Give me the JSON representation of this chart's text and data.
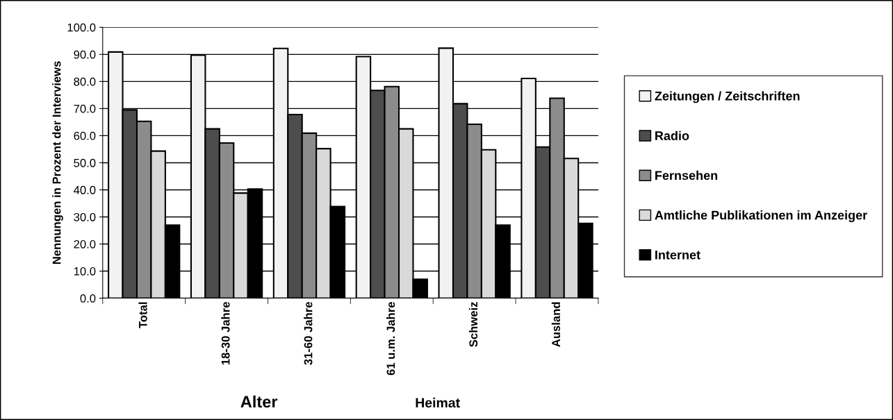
{
  "chart_data": {
    "type": "bar",
    "ylabel": "Nennungen in Prozent der Interviews",
    "categories": [
      "Total",
      "18-30 Jahre",
      "31-60 Jahre",
      "61 u.m. Jahre",
      "Schweiz",
      "Ausland"
    ],
    "series": [
      {
        "name": "Zeitungen / Zeitschriften",
        "color": "#f2f2f2",
        "values": [
          90.9,
          89.7,
          92.2,
          89.2,
          92.3,
          81.1
        ]
      },
      {
        "name": "Radio",
        "color": "#4d4d4d",
        "values": [
          69.5,
          62.5,
          67.8,
          76.7,
          71.8,
          55.8
        ]
      },
      {
        "name": "Fernsehen",
        "color": "#8c8c8c",
        "values": [
          65.3,
          57.3,
          60.9,
          78.1,
          64.2,
          73.8
        ]
      },
      {
        "name": "Amtliche Publikationen im Anzeiger",
        "color": "#d9d9d9",
        "values": [
          54.3,
          38.8,
          55.2,
          62.5,
          54.8,
          51.6
        ]
      },
      {
        "name": "Internet",
        "color": "#000000",
        "values": [
          27.0,
          40.3,
          33.8,
          7.0,
          27.0,
          27.6
        ]
      }
    ],
    "ylim": [
      0,
      100
    ],
    "yticks": [
      {
        "value": 0,
        "label": "0.0"
      },
      {
        "value": 10,
        "label": "10.0"
      },
      {
        "value": 20,
        "label": "20.0"
      },
      {
        "value": 30,
        "label": "30.0"
      },
      {
        "value": 40,
        "label": "40.0"
      },
      {
        "value": 50,
        "label": "50.0"
      },
      {
        "value": 60,
        "label": "60.0"
      },
      {
        "value": 70,
        "label": "70.0"
      },
      {
        "value": 80,
        "label": "80.0"
      },
      {
        "value": 90,
        "label": "90.0"
      },
      {
        "value": 100,
        "label": "100.0"
      }
    ],
    "grid": "y",
    "legend": "right",
    "annotations": [
      "Alter",
      "Heimat"
    ]
  }
}
